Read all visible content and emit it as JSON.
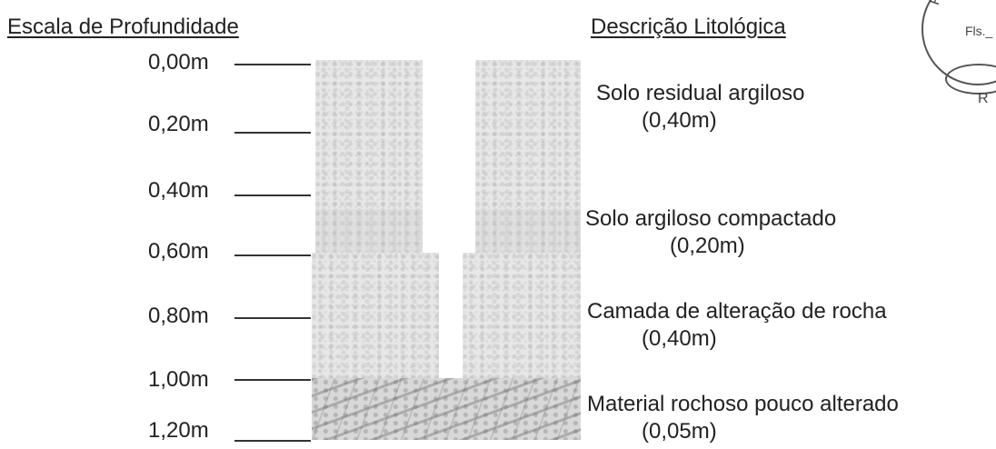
{
  "headings": {
    "scale": "Escala de Profundidade",
    "description": "Descrição Litológica"
  },
  "depth_scale": [
    "0,00m",
    "0,20m",
    "0,40m",
    "0,60m",
    "0,80m",
    "1,00m",
    "1,20m"
  ],
  "layers": [
    {
      "name": "Solo residual argiloso",
      "thickness": "(0,40m)"
    },
    {
      "name": "Solo argiloso compactado",
      "thickness": "(0,20m)"
    },
    {
      "name": "Camada de alteração de rocha",
      "thickness": "(0,40m)"
    },
    {
      "name": "Material rochoso pouco alterado",
      "thickness": "(0,05m)"
    }
  ],
  "stamp": {
    "text_arc": "Prefeitura",
    "fls": "Fls._",
    "initial": "R"
  }
}
